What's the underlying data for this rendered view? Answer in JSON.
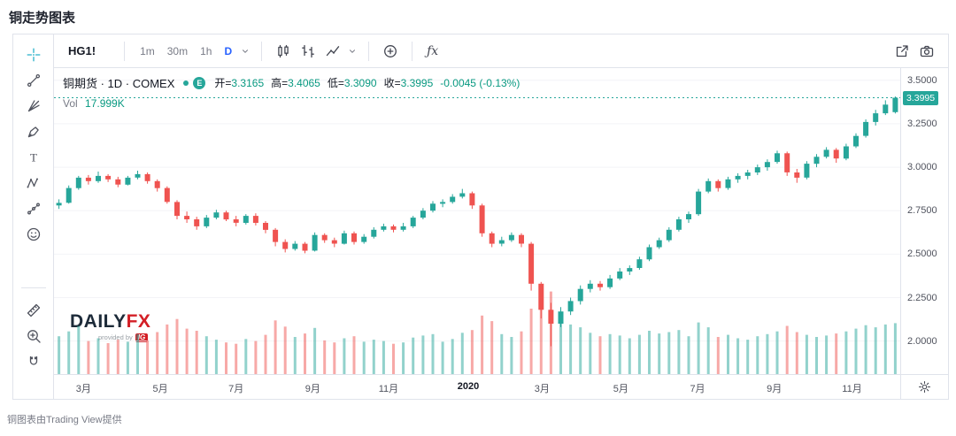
{
  "page": {
    "title": "铜走势图表",
    "footer": "铜图表由Trading View提供"
  },
  "toolbar": {
    "symbol": "HG1!",
    "intervals": [
      {
        "label": "1m",
        "active": false
      },
      {
        "label": "30m",
        "active": false
      },
      {
        "label": "1h",
        "active": false
      },
      {
        "label": "D",
        "active": true
      }
    ],
    "indicators_label": "ƒx",
    "icons": [
      "chevron-down-icon",
      "candles-icon",
      "bars-icon",
      "area-icon",
      "compare-icon",
      "open-in-new-icon",
      "camera-icon",
      "gear-icon"
    ]
  },
  "legend": {
    "title": "铜期货 · 1D · COMEX",
    "badge": "E",
    "ohlc": [
      {
        "key": "open",
        "label": "开",
        "value": "3.3165"
      },
      {
        "key": "high",
        "label": "高",
        "value": "3.4065"
      },
      {
        "key": "low",
        "label": "低",
        "value": "3.3090"
      },
      {
        "key": "close",
        "label": "收",
        "value": "3.3995"
      }
    ],
    "change": "-0.0045 (-0.13%)",
    "vol_label": "Vol",
    "vol_value": "17.999K"
  },
  "logo": {
    "text_primary": "DAILY",
    "text_accent": "FX",
    "tagline": "provided by",
    "brand": "IG"
  },
  "drawing_tools": [
    {
      "name": "crosshair-tool",
      "icon": "crosshair-icon",
      "active": true
    },
    {
      "name": "trend-line-tool",
      "icon": "trendline-icon"
    },
    {
      "name": "gann-fib-tool",
      "icon": "fib-icon"
    },
    {
      "name": "brush-tool",
      "icon": "brush-icon"
    },
    {
      "name": "text-tool",
      "icon": "text-icon"
    },
    {
      "name": "xabcd-pattern-tool",
      "icon": "xabcd-icon"
    },
    {
      "name": "forecast-tool",
      "icon": "forecast-icon"
    },
    {
      "name": "emoji-tool",
      "icon": "emoji-icon"
    },
    {
      "divider": true
    },
    {
      "name": "measure-ruler-tool",
      "icon": "ruler-icon"
    },
    {
      "name": "zoom-in-tool",
      "icon": "zoom-icon"
    },
    {
      "name": "magnet-tool",
      "icon": "magnet-icon"
    }
  ],
  "colors": {
    "up": "#26a69a",
    "down": "#ef5350",
    "teal_text": "#089981",
    "interval_active": "#2962ff",
    "active_tool": "#26b0c9",
    "axis_text": "#50535e",
    "border": "#e0e3eb",
    "last_price_bg": "#26a69a",
    "logo_navy": "#1d2b39",
    "logo_red": "#d31f26"
  },
  "chart_data": {
    "type": "candlestick",
    "symbol": "铜期货 (HG1!)",
    "exchange": "COMEX",
    "interval": "1D",
    "legend_ohlc": {
      "open": 3.3165,
      "high": 3.4065,
      "low": 3.309,
      "close": 3.3995,
      "change": -0.0045,
      "change_pct": -0.13,
      "volume": "17.999K"
    },
    "y_ticks": [
      3.5,
      3.25,
      3.0,
      2.75,
      2.5,
      2.25,
      2.0
    ],
    "y_range": [
      1.81,
      3.57
    ],
    "last_price": 3.3995,
    "x_ticks": [
      {
        "label": "3月",
        "i": 2.5
      },
      {
        "label": "5月",
        "i": 10.3
      },
      {
        "label": "7月",
        "i": 18.0
      },
      {
        "label": "9月",
        "i": 25.8
      },
      {
        "label": "11月",
        "i": 33.5
      },
      {
        "label": "2020",
        "i": 41.6,
        "year": true
      },
      {
        "label": "3月",
        "i": 49.1
      },
      {
        "label": "5月",
        "i": 57.1
      },
      {
        "label": "7月",
        "i": 64.9
      },
      {
        "label": "9月",
        "i": 72.7
      },
      {
        "label": "11月",
        "i": 80.6
      }
    ],
    "candles": [
      [
        2.78,
        2.815,
        2.76,
        2.795,
        55
      ],
      [
        2.795,
        2.895,
        2.79,
        2.88,
        62
      ],
      [
        2.88,
        2.95,
        2.87,
        2.94,
        70
      ],
      [
        2.94,
        2.955,
        2.9,
        2.92,
        48
      ],
      [
        2.92,
        2.975,
        2.91,
        2.95,
        52
      ],
      [
        2.95,
        2.96,
        2.915,
        2.93,
        45
      ],
      [
        2.93,
        2.945,
        2.885,
        2.9,
        50
      ],
      [
        2.9,
        2.95,
        2.895,
        2.94,
        47
      ],
      [
        2.94,
        2.98,
        2.93,
        2.96,
        58
      ],
      [
        2.96,
        2.97,
        2.905,
        2.92,
        49
      ],
      [
        2.92,
        2.93,
        2.86,
        2.88,
        61
      ],
      [
        2.88,
        2.89,
        2.79,
        2.8,
        72
      ],
      [
        2.8,
        2.81,
        2.7,
        2.72,
        80
      ],
      [
        2.72,
        2.745,
        2.68,
        2.7,
        66
      ],
      [
        2.7,
        2.715,
        2.64,
        2.66,
        63
      ],
      [
        2.66,
        2.725,
        2.65,
        2.71,
        55
      ],
      [
        2.71,
        2.755,
        2.7,
        2.74,
        50
      ],
      [
        2.74,
        2.75,
        2.69,
        2.7,
        46
      ],
      [
        2.7,
        2.72,
        2.66,
        2.68,
        44
      ],
      [
        2.68,
        2.73,
        2.67,
        2.72,
        51
      ],
      [
        2.72,
        2.735,
        2.665,
        2.68,
        48
      ],
      [
        2.68,
        2.69,
        2.62,
        2.64,
        57
      ],
      [
        2.64,
        2.65,
        2.545,
        2.57,
        78
      ],
      [
        2.57,
        2.585,
        2.51,
        2.53,
        69
      ],
      [
        2.53,
        2.575,
        2.52,
        2.56,
        54
      ],
      [
        2.56,
        2.57,
        2.505,
        2.52,
        59
      ],
      [
        2.52,
        2.625,
        2.515,
        2.61,
        67
      ],
      [
        2.61,
        2.62,
        2.565,
        2.58,
        49
      ],
      [
        2.58,
        2.595,
        2.54,
        2.56,
        46
      ],
      [
        2.56,
        2.635,
        2.555,
        2.62,
        52
      ],
      [
        2.62,
        2.63,
        2.555,
        2.57,
        55
      ],
      [
        2.57,
        2.615,
        2.56,
        2.6,
        47
      ],
      [
        2.6,
        2.655,
        2.59,
        2.64,
        50
      ],
      [
        2.64,
        2.675,
        2.63,
        2.66,
        48
      ],
      [
        2.66,
        2.67,
        2.625,
        2.64,
        44
      ],
      [
        2.64,
        2.68,
        2.63,
        2.66,
        46
      ],
      [
        2.66,
        2.72,
        2.65,
        2.71,
        53
      ],
      [
        2.71,
        2.765,
        2.7,
        2.75,
        56
      ],
      [
        2.75,
        2.805,
        2.74,
        2.79,
        58
      ],
      [
        2.79,
        2.815,
        2.77,
        2.8,
        47
      ],
      [
        2.8,
        2.845,
        2.79,
        2.83,
        51
      ],
      [
        2.83,
        2.875,
        2.82,
        2.85,
        60
      ],
      [
        2.85,
        2.86,
        2.76,
        2.78,
        64
      ],
      [
        2.78,
        2.79,
        2.6,
        2.62,
        85
      ],
      [
        2.62,
        2.63,
        2.54,
        2.56,
        77
      ],
      [
        2.56,
        2.6,
        2.545,
        2.58,
        58
      ],
      [
        2.58,
        2.625,
        2.57,
        2.61,
        54
      ],
      [
        2.61,
        2.62,
        2.54,
        2.56,
        62
      ],
      [
        2.56,
        2.57,
        2.29,
        2.33,
        95
      ],
      [
        2.33,
        2.34,
        2.13,
        2.18,
        110
      ],
      [
        2.18,
        2.22,
        1.97,
        2.1,
        120
      ],
      [
        2.1,
        2.195,
        2.08,
        2.17,
        88
      ],
      [
        2.17,
        2.25,
        2.15,
        2.23,
        72
      ],
      [
        2.23,
        2.32,
        2.21,
        2.3,
        68
      ],
      [
        2.3,
        2.35,
        2.28,
        2.33,
        60
      ],
      [
        2.33,
        2.345,
        2.29,
        2.31,
        55
      ],
      [
        2.31,
        2.38,
        2.3,
        2.36,
        58
      ],
      [
        2.36,
        2.42,
        2.35,
        2.4,
        56
      ],
      [
        2.4,
        2.435,
        2.38,
        2.42,
        52
      ],
      [
        2.42,
        2.485,
        2.41,
        2.47,
        57
      ],
      [
        2.47,
        2.555,
        2.46,
        2.54,
        63
      ],
      [
        2.54,
        2.595,
        2.53,
        2.58,
        59
      ],
      [
        2.58,
        2.655,
        2.57,
        2.64,
        61
      ],
      [
        2.64,
        2.715,
        2.63,
        2.7,
        64
      ],
      [
        2.7,
        2.745,
        2.68,
        2.73,
        55
      ],
      [
        2.73,
        2.875,
        2.72,
        2.86,
        75
      ],
      [
        2.86,
        2.935,
        2.85,
        2.92,
        68
      ],
      [
        2.92,
        2.93,
        2.86,
        2.88,
        54
      ],
      [
        2.88,
        2.945,
        2.87,
        2.93,
        57
      ],
      [
        2.93,
        2.965,
        2.91,
        2.95,
        52
      ],
      [
        2.95,
        2.985,
        2.93,
        2.97,
        50
      ],
      [
        2.97,
        3.015,
        2.955,
        3.0,
        55
      ],
      [
        3.0,
        3.045,
        2.98,
        3.03,
        58
      ],
      [
        3.03,
        3.095,
        3.02,
        3.08,
        62
      ],
      [
        3.08,
        3.09,
        2.95,
        2.97,
        70
      ],
      [
        2.97,
        2.99,
        2.91,
        2.94,
        61
      ],
      [
        2.94,
        3.035,
        2.93,
        3.02,
        57
      ],
      [
        3.02,
        3.075,
        3.0,
        3.06,
        54
      ],
      [
        3.06,
        3.115,
        3.05,
        3.1,
        56
      ],
      [
        3.1,
        3.11,
        3.025,
        3.05,
        59
      ],
      [
        3.05,
        3.135,
        3.04,
        3.12,
        62
      ],
      [
        3.12,
        3.195,
        3.11,
        3.18,
        66
      ],
      [
        3.18,
        3.275,
        3.17,
        3.26,
        71
      ],
      [
        3.26,
        3.33,
        3.24,
        3.31,
        68
      ],
      [
        3.31,
        3.385,
        3.3,
        3.36,
        72
      ],
      [
        3.3165,
        3.4065,
        3.309,
        3.3995,
        74
      ]
    ]
  }
}
